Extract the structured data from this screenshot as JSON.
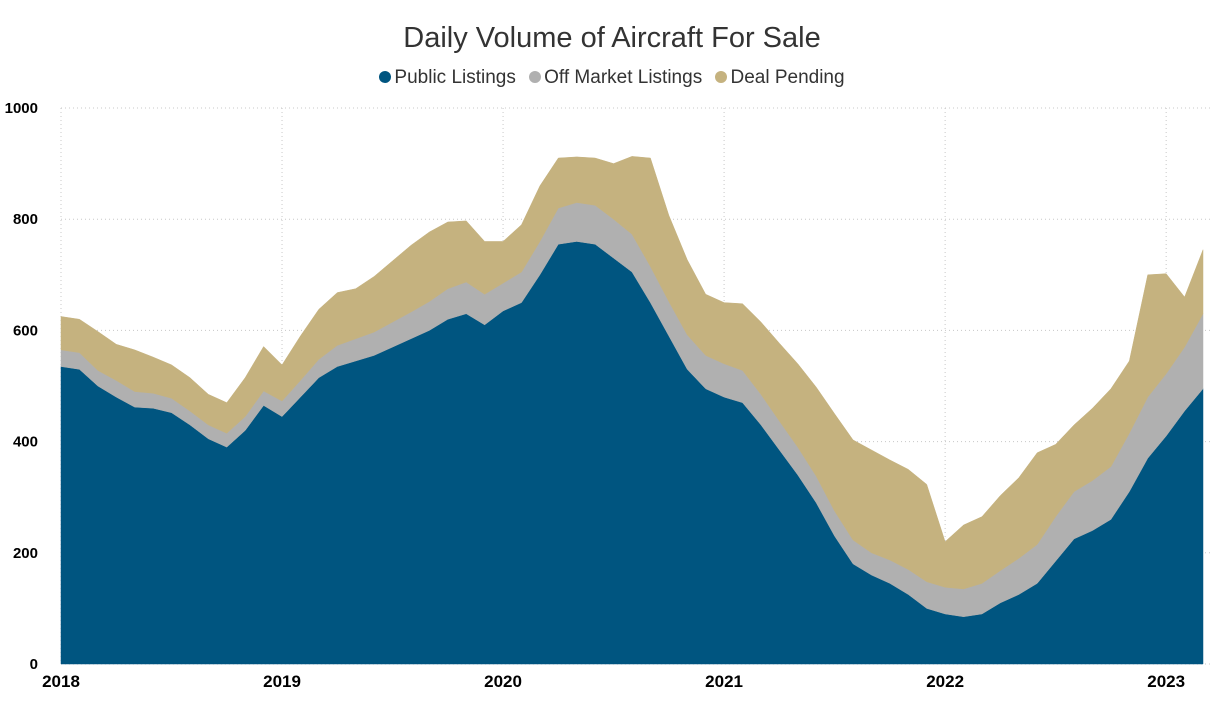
{
  "chart_data": {
    "type": "area",
    "stacked": true,
    "title": "Daily Volume of Aircraft For Sale",
    "xlabel": "",
    "ylabel": "",
    "ylim": [
      0,
      1000
    ],
    "yticks": [
      "0",
      "200",
      "400",
      "600",
      "800",
      "1000"
    ],
    "xtick_labels": [
      "2018",
      "2019",
      "2020",
      "2021",
      "2022",
      "2023"
    ],
    "xlim": [
      "2018-01",
      "2023-03"
    ],
    "grid": true,
    "legend_position": "top-center",
    "x": [
      "2018-01",
      "2018-02",
      "2018-03",
      "2018-04",
      "2018-05",
      "2018-06",
      "2018-07",
      "2018-08",
      "2018-09",
      "2018-10",
      "2018-11",
      "2018-12",
      "2019-01",
      "2019-02",
      "2019-03",
      "2019-04",
      "2019-05",
      "2019-06",
      "2019-07",
      "2019-08",
      "2019-09",
      "2019-10",
      "2019-11",
      "2019-12",
      "2020-01",
      "2020-02",
      "2020-03",
      "2020-04",
      "2020-05",
      "2020-06",
      "2020-07",
      "2020-08",
      "2020-09",
      "2020-10",
      "2020-11",
      "2020-12",
      "2021-01",
      "2021-02",
      "2021-03",
      "2021-04",
      "2021-05",
      "2021-06",
      "2021-07",
      "2021-08",
      "2021-09",
      "2021-10",
      "2021-11",
      "2021-12",
      "2022-01",
      "2022-02",
      "2022-03",
      "2022-04",
      "2022-05",
      "2022-06",
      "2022-07",
      "2022-08",
      "2022-09",
      "2022-10",
      "2022-11",
      "2022-12",
      "2023-01",
      "2023-02",
      "2023-03"
    ],
    "series": [
      {
        "name": "Public Listings",
        "color": "#005580",
        "values": [
          535,
          530,
          500,
          480,
          462,
          460,
          452,
          430,
          405,
          390,
          420,
          465,
          445,
          480,
          515,
          535,
          545,
          555,
          570,
          585,
          600,
          620,
          630,
          610,
          635,
          650,
          700,
          755,
          760,
          755,
          730,
          705,
          650,
          590,
          530,
          495,
          480,
          470,
          430,
          385,
          340,
          290,
          230,
          180,
          160,
          145,
          125,
          100,
          90,
          85,
          90,
          110,
          125,
          145,
          185,
          225,
          240,
          260,
          310,
          370,
          410,
          455,
          495
        ]
      },
      {
        "name": "Off Market Listings",
        "color": "#b0b0b0",
        "values": [
          30,
          30,
          28,
          30,
          28,
          27,
          26,
          25,
          25,
          25,
          25,
          26,
          28,
          30,
          33,
          38,
          40,
          42,
          45,
          48,
          52,
          55,
          57,
          55,
          50,
          55,
          60,
          65,
          70,
          70,
          70,
          68,
          65,
          62,
          62,
          60,
          60,
          58,
          55,
          52,
          50,
          48,
          45,
          43,
          40,
          42,
          45,
          48,
          48,
          50,
          55,
          58,
          65,
          70,
          80,
          85,
          90,
          95,
          105,
          110,
          112,
          115,
          135
        ]
      },
      {
        "name": "Deal Pending",
        "color": "#c5b27f",
        "values": [
          60,
          60,
          70,
          65,
          75,
          65,
          60,
          60,
          55,
          55,
          70,
          80,
          65,
          80,
          90,
          95,
          90,
          100,
          110,
          120,
          125,
          120,
          110,
          95,
          75,
          85,
          100,
          90,
          82,
          85,
          100,
          140,
          195,
          155,
          135,
          110,
          110,
          120,
          130,
          140,
          150,
          160,
          175,
          180,
          185,
          180,
          180,
          175,
          82,
          115,
          120,
          135,
          145,
          165,
          130,
          120,
          130,
          140,
          130,
          220,
          180,
          90,
          115
        ]
      }
    ]
  }
}
